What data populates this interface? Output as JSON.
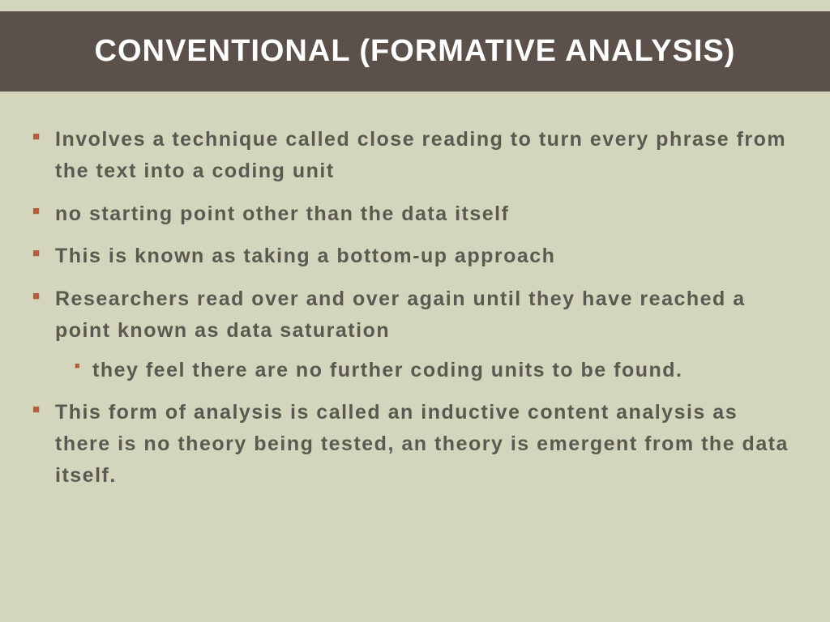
{
  "colors": {
    "body_bg": "#d4d5bd",
    "header_bg": "#5b514a",
    "header_fg": "#ffffff",
    "text": "#5a5a50",
    "accent": "#b85c3e"
  },
  "typography": {
    "title_fontsize": 38,
    "bullet_fontsize": 25,
    "sub_bullet_fontsize": 25
  },
  "title": "CONVENTIONAL (FORMATIVE ANALYSIS)",
  "bullets": [
    {
      "segments": [
        {
          "t": "Involves a technique called ",
          "b": false
        },
        {
          "t": "close reading",
          "b": true
        },
        {
          "t": " to turn every phrase from the text into a ",
          "b": false
        },
        {
          "t": "coding unit",
          "b": true
        }
      ]
    },
    {
      "segments": [
        {
          "t": "no starting point other than the data itself",
          "b": false
        }
      ]
    },
    {
      "segments": [
        {
          "t": "This is known as taking a ",
          "b": false
        },
        {
          "t": "bottom-up",
          "b": true
        },
        {
          "t": " approach",
          "b": false
        }
      ]
    },
    {
      "segments": [
        {
          "t": "Researchers read over and over again until they have reached a point known as ",
          "b": false
        },
        {
          "t": "data saturation",
          "b": true
        }
      ],
      "sub": [
        {
          "segments": [
            {
              "t": "they feel there are no further coding units to be found.",
              "b": false
            }
          ]
        }
      ]
    },
    {
      "segments": [
        {
          "t": "This form of analysis is called an ",
          "b": false
        },
        {
          "t": "inductive content analysis",
          "b": true
        },
        {
          "t": " as there is no theory being tested, an ",
          "b": false
        },
        {
          "t": "theory is emergent from the data itself",
          "b": true
        },
        {
          "t": ".",
          "b": false
        }
      ]
    }
  ]
}
